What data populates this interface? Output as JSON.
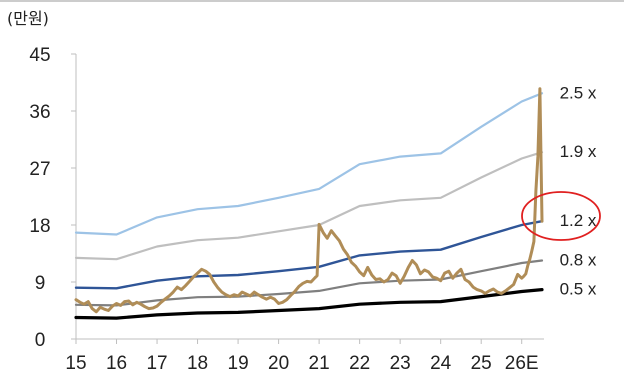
{
  "chart_data": {
    "type": "line",
    "unit_label": "(만원)",
    "ylim": [
      0,
      45
    ],
    "y_ticks": [
      "0",
      "9",
      "18",
      "27",
      "36",
      "45"
    ],
    "y_tick_values": [
      0,
      9,
      18,
      27,
      36,
      45
    ],
    "x_labels": [
      "15",
      "16",
      "17",
      "18",
      "19",
      "20",
      "21",
      "22",
      "23",
      "24",
      "25",
      "26E"
    ],
    "x_positions": [
      2015,
      2016,
      2017,
      2018,
      2019,
      2020,
      2021,
      2022,
      2023,
      2024,
      2025,
      2026
    ],
    "xlim": [
      2015,
      2026.55
    ],
    "grid": false,
    "highlight": "1.2 x",
    "colors": {
      "band_2_5": "#9dc3e6",
      "band_1_9": "#bfbfbf",
      "band_1_2": "#2f5597",
      "band_0_8": "#7f7f7f",
      "band_0_5": "#000000",
      "price": "#b08d57",
      "highlight_circle": "#e02020",
      "axis": "#bfbfbf"
    },
    "series": [
      {
        "name": "2.5 x",
        "x": [
          2015,
          2016,
          2017,
          2018,
          2019,
          2020,
          2021,
          2022,
          2023,
          2024,
          2025,
          2026,
          2026.5
        ],
        "values": [
          16.8,
          16.5,
          19.2,
          20.5,
          21.0,
          22.3,
          23.7,
          27.6,
          28.8,
          29.3,
          33.5,
          37.5,
          38.8
        ]
      },
      {
        "name": "1.9 x",
        "x": [
          2015,
          2016,
          2017,
          2018,
          2019,
          2020,
          2021,
          2022,
          2023,
          2024,
          2025,
          2026,
          2026.5
        ],
        "values": [
          12.8,
          12.6,
          14.6,
          15.6,
          16.0,
          17.0,
          18.0,
          21.0,
          21.9,
          22.3,
          25.5,
          28.5,
          29.5
        ]
      },
      {
        "name": "1.2 x",
        "x": [
          2015,
          2016,
          2017,
          2018,
          2019,
          2020,
          2021,
          2022,
          2023,
          2024,
          2025,
          2026,
          2026.5
        ],
        "values": [
          8.1,
          8.0,
          9.2,
          9.9,
          10.1,
          10.7,
          11.4,
          13.2,
          13.8,
          14.1,
          16.1,
          18.0,
          18.6
        ]
      },
      {
        "name": "0.8 x",
        "x": [
          2015,
          2016,
          2017,
          2018,
          2019,
          2020,
          2021,
          2022,
          2023,
          2024,
          2025,
          2026,
          2026.5
        ],
        "values": [
          5.4,
          5.3,
          6.1,
          6.6,
          6.7,
          7.1,
          7.6,
          8.8,
          9.2,
          9.4,
          10.7,
          12.0,
          12.4
        ]
      },
      {
        "name": "0.5 x",
        "x": [
          2015,
          2016,
          2017,
          2018,
          2019,
          2020,
          2021,
          2022,
          2023,
          2024,
          2025,
          2026,
          2026.5
        ],
        "values": [
          3.4,
          3.3,
          3.8,
          4.1,
          4.2,
          4.5,
          4.8,
          5.5,
          5.8,
          5.9,
          6.7,
          7.5,
          7.8
        ]
      },
      {
        "x": [
          2015.0,
          2015.1,
          2015.2,
          2015.3,
          2015.4,
          2015.5,
          2015.6,
          2015.7,
          2015.8,
          2015.9,
          2016.0,
          2016.1,
          2016.2,
          2016.3,
          2016.4,
          2016.5,
          2016.6,
          2016.7,
          2016.8,
          2016.9,
          2017.0,
          2017.1,
          2017.2,
          2017.3,
          2017.4,
          2017.5,
          2017.6,
          2017.7,
          2017.8,
          2017.9,
          2018.0,
          2018.1,
          2018.2,
          2018.3,
          2018.4,
          2018.5,
          2018.6,
          2018.7,
          2018.8,
          2018.9,
          2019.0,
          2019.1,
          2019.2,
          2019.3,
          2019.4,
          2019.5,
          2019.6,
          2019.7,
          2019.8,
          2019.9,
          2020.0,
          2020.1,
          2020.2,
          2020.3,
          2020.4,
          2020.5,
          2020.6,
          2020.7,
          2020.8,
          2020.9,
          2020.95,
          2021.0,
          2021.1,
          2021.2,
          2021.3,
          2021.4,
          2021.5,
          2021.6,
          2021.7,
          2021.8,
          2021.9,
          2022.0,
          2022.1,
          2022.2,
          2022.3,
          2022.4,
          2022.5,
          2022.6,
          2022.7,
          2022.8,
          2022.9,
          2023.0,
          2023.1,
          2023.2,
          2023.3,
          2023.4,
          2023.5,
          2023.6,
          2023.7,
          2023.8,
          2023.9,
          2024.0,
          2024.1,
          2024.2,
          2024.3,
          2024.4,
          2024.5,
          2024.6,
          2024.7,
          2024.8,
          2024.9,
          2025.0,
          2025.1,
          2025.2,
          2025.3,
          2025.4,
          2025.5,
          2025.6,
          2025.7,
          2025.8,
          2025.9,
          2026.0,
          2026.05,
          2026.1,
          2026.15,
          2026.2,
          2026.25,
          2026.3,
          2026.35,
          2026.4,
          2026.45,
          2026.5
        ],
        "values": [
          6.2,
          5.8,
          5.5,
          5.9,
          4.8,
          4.3,
          5.0,
          4.7,
          4.5,
          5.2,
          5.6,
          5.3,
          5.9,
          6.0,
          5.4,
          5.8,
          5.5,
          5.1,
          4.8,
          4.9,
          5.2,
          5.8,
          6.3,
          6.8,
          7.4,
          8.2,
          7.8,
          8.4,
          9.1,
          9.8,
          10.4,
          11.0,
          10.7,
          10.2,
          9.0,
          8.1,
          7.4,
          7.0,
          6.7,
          7.0,
          6.8,
          7.4,
          7.1,
          6.8,
          7.4,
          7.0,
          6.6,
          6.3,
          6.6,
          6.3,
          5.6,
          5.8,
          6.2,
          6.9,
          7.5,
          8.3,
          8.8,
          9.1,
          9.0,
          9.7,
          10.0,
          18.1,
          16.8,
          15.9,
          17.1,
          16.3,
          15.5,
          14.2,
          13.3,
          12.1,
          11.5,
          10.6,
          10.0,
          11.3,
          10.1,
          9.4,
          9.5,
          9.0,
          9.4,
          10.4,
          10.0,
          8.8,
          9.9,
          11.3,
          12.4,
          11.7,
          10.3,
          10.9,
          10.6,
          9.8,
          9.6,
          9.2,
          10.4,
          10.7,
          9.6,
          10.4,
          11.0,
          9.4,
          9.0,
          8.2,
          7.8,
          7.6,
          7.2,
          7.6,
          7.9,
          7.4,
          7.2,
          7.6,
          8.1,
          8.6,
          10.2,
          9.6,
          9.9,
          10.3,
          11.6,
          12.6,
          13.9,
          15.4,
          23.4,
          28.8,
          39.5,
          18.6
        ]
      }
    ]
  }
}
